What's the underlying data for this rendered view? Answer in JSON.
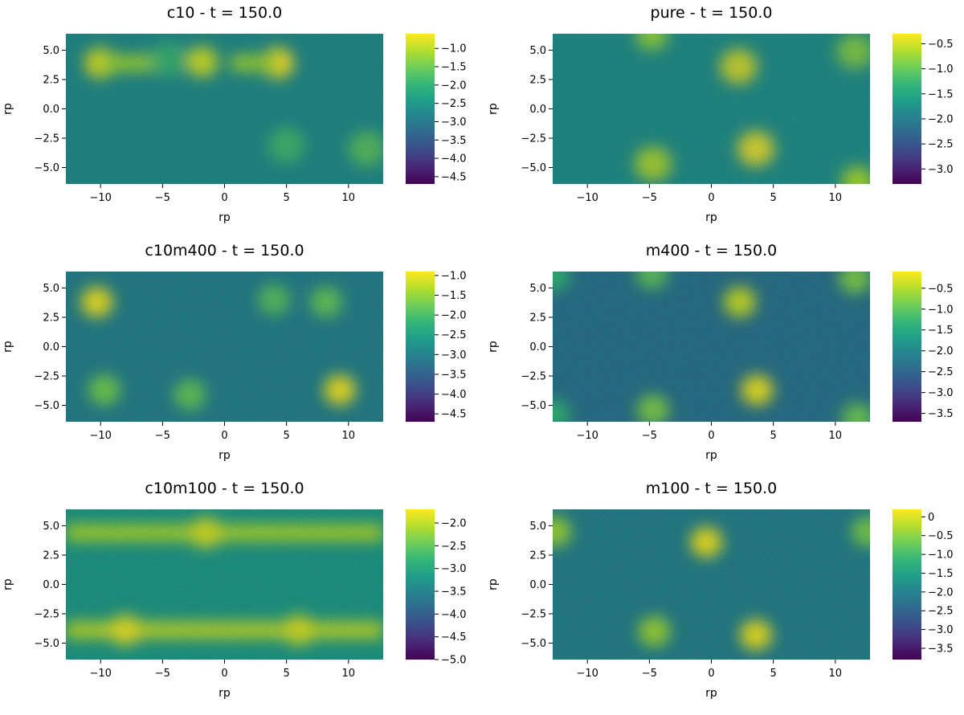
{
  "chart_data": [
    {
      "type": "heatmap",
      "title": "c10 - t = 150.0",
      "xlabel": "rp",
      "ylabel": "rp",
      "xlim": [
        -12.8,
        12.8
      ],
      "ylim": [
        -6.4,
        6.4
      ],
      "xticks": [
        -10,
        -5,
        0,
        5,
        10
      ],
      "xticklabels": [
        "−10",
        "−5",
        "0",
        "5",
        "10"
      ],
      "yticks": [
        5.0,
        2.5,
        0.0,
        -2.5,
        -5.0
      ],
      "yticklabels": [
        "5.0",
        "2.5",
        "0.0",
        "−2.5",
        "−5.0"
      ],
      "colorbar": {
        "min": -4.7,
        "max": -0.6,
        "ticks": [
          -1.0,
          -1.5,
          -2.0,
          -2.5,
          -3.0,
          -3.5,
          -4.0,
          -4.5
        ],
        "ticklabels": [
          "−1.0",
          "−1.5",
          "−2.0",
          "−2.5",
          "−3.0",
          "−3.5",
          "−4.0",
          "−4.5"
        ]
      },
      "colormap": "viridis",
      "background_value": -2.7,
      "features": [
        {
          "kind": "spot",
          "x": 4.3,
          "y": 3.9,
          "value": -0.6
        },
        {
          "kind": "spot",
          "x": -10.0,
          "y": 3.9,
          "value": -0.8
        },
        {
          "kind": "spot",
          "x": -1.8,
          "y": 4.0,
          "value": -0.9
        },
        {
          "kind": "ridge",
          "x1": -10.0,
          "x2": -5.0,
          "y": 3.9,
          "value": -1.2
        },
        {
          "kind": "ridge",
          "x1": 0.5,
          "x2": 4.3,
          "y": 3.9,
          "value": -1.2
        },
        {
          "kind": "ring",
          "x": -4.5,
          "y": 4.2,
          "value": -1.9
        },
        {
          "kind": "ring",
          "x": 5.0,
          "y": -3.1,
          "value": -1.8
        },
        {
          "kind": "ring",
          "x": 11.5,
          "y": -3.4,
          "value": -1.6
        }
      ]
    },
    {
      "type": "heatmap",
      "title": "pure - t = 150.0",
      "xlabel": "rp",
      "ylabel": "rp",
      "xlim": [
        -12.8,
        12.8
      ],
      "ylim": [
        -6.4,
        6.4
      ],
      "xticks": [
        -10,
        -5,
        0,
        5,
        10
      ],
      "xticklabels": [
        "−10",
        "−5",
        "0",
        "5",
        "10"
      ],
      "yticks": [
        5.0,
        2.5,
        0.0,
        -2.5,
        -5.0
      ],
      "yticklabels": [
        "5.0",
        "2.5",
        "0.0",
        "−2.5",
        "−5.0"
      ],
      "colorbar": {
        "min": -3.3,
        "max": -0.3,
        "ticks": [
          -0.5,
          -1.0,
          -1.5,
          -2.0,
          -2.5,
          -3.0
        ],
        "ticklabels": [
          "−0.5",
          "−1.0",
          "−1.5",
          "−2.0",
          "−2.5",
          "−3.0"
        ]
      },
      "colormap": "viridis",
      "background_value": -1.8,
      "features": [
        {
          "kind": "ring",
          "x": 2.2,
          "y": 3.6,
          "value": -0.4
        },
        {
          "kind": "ring",
          "x": 3.6,
          "y": -3.4,
          "value": -0.3
        },
        {
          "kind": "ring",
          "x": -4.7,
          "y": -4.7,
          "value": -0.6
        },
        {
          "kind": "ring",
          "x": 11.6,
          "y": 4.9,
          "value": -0.8
        },
        {
          "kind": "spot",
          "x": -4.8,
          "y": 6.3,
          "value": -0.8
        },
        {
          "kind": "spot",
          "x": 11.8,
          "y": -6.2,
          "value": -0.7
        }
      ]
    },
    {
      "type": "heatmap",
      "title": "c10m400 - t = 150.0",
      "xlabel": "rp",
      "ylabel": "rp",
      "xlim": [
        -12.8,
        12.8
      ],
      "ylim": [
        -6.4,
        6.4
      ],
      "xticks": [
        -10,
        -5,
        0,
        5,
        10
      ],
      "xticklabels": [
        "−10",
        "−5",
        "0",
        "5",
        "10"
      ],
      "yticks": [
        5.0,
        2.5,
        0.0,
        -2.5,
        -5.0
      ],
      "yticklabels": [
        "5.0",
        "2.5",
        "0.0",
        "−2.5",
        "−5.0"
      ],
      "colorbar": {
        "min": -4.7,
        "max": -0.9,
        "ticks": [
          -1.0,
          -1.5,
          -2.0,
          -2.5,
          -3.0,
          -3.5,
          -4.0,
          -4.5
        ],
        "ticklabels": [
          "−1.0",
          "−1.5",
          "−2.0",
          "−2.5",
          "−3.0",
          "−3.5",
          "−4.0",
          "−4.5"
        ]
      },
      "colormap": "viridis",
      "background_value": -3.0,
      "features": [
        {
          "kind": "spot",
          "x": -10.3,
          "y": 3.8,
          "value": -1.0
        },
        {
          "kind": "spot",
          "x": 4.0,
          "y": 4.0,
          "value": -1.9
        },
        {
          "kind": "spot",
          "x": 8.2,
          "y": 3.8,
          "value": -1.8
        },
        {
          "kind": "spot",
          "x": -9.7,
          "y": -3.7,
          "value": -1.7
        },
        {
          "kind": "spot",
          "x": -2.8,
          "y": -4.1,
          "value": -1.8
        },
        {
          "kind": "spot",
          "x": 9.3,
          "y": -3.7,
          "value": -1.0
        }
      ]
    },
    {
      "type": "heatmap",
      "title": "m400 - t = 150.0",
      "xlabel": "rp",
      "ylabel": "rp",
      "xlim": [
        -12.8,
        12.8
      ],
      "ylim": [
        -6.4,
        6.4
      ],
      "xticks": [
        -10,
        -5,
        0,
        5,
        10
      ],
      "xticklabels": [
        "−10",
        "−5",
        "0",
        "5",
        "10"
      ],
      "yticks": [
        5.0,
        2.5,
        0.0,
        -2.5,
        -5.0
      ],
      "yticklabels": [
        "5.0",
        "2.5",
        "0.0",
        "−2.5",
        "−5.0"
      ],
      "colorbar": {
        "min": -3.7,
        "max": -0.1,
        "ticks": [
          -0.5,
          -1.0,
          -1.5,
          -2.0,
          -2.5,
          -3.0,
          -3.5
        ],
        "ticklabels": [
          "−0.5",
          "−1.0",
          "−1.5",
          "−2.0",
          "−2.5",
          "−3.0",
          "−3.5"
        ]
      },
      "colormap": "viridis",
      "background_value": -2.3,
      "features": [
        {
          "kind": "spot",
          "x": 2.3,
          "y": 3.8,
          "value": -0.4
        },
        {
          "kind": "spot",
          "x": 3.7,
          "y": -3.7,
          "value": -0.2
        },
        {
          "kind": "spot",
          "x": -4.7,
          "y": -5.4,
          "value": -0.8
        },
        {
          "kind": "spot",
          "x": -4.8,
          "y": 6.2,
          "value": -1.0
        },
        {
          "kind": "spot",
          "x": 11.6,
          "y": 5.8,
          "value": -0.8
        },
        {
          "kind": "spot",
          "x": 11.8,
          "y": -6.1,
          "value": -0.9
        },
        {
          "kind": "spot",
          "x": -12.7,
          "y": 6.0,
          "value": -1.3
        },
        {
          "kind": "spot",
          "x": -12.7,
          "y": -5.8,
          "value": -1.3
        }
      ]
    },
    {
      "type": "heatmap",
      "title": "c10m100 - t = 150.0",
      "xlabel": "rp",
      "ylabel": "rp",
      "xlim": [
        -12.8,
        12.8
      ],
      "ylim": [
        -6.4,
        6.4
      ],
      "xticks": [
        -10,
        -5,
        0,
        5,
        10
      ],
      "xticklabels": [
        "−10",
        "−5",
        "0",
        "5",
        "10"
      ],
      "yticks": [
        5.0,
        2.5,
        0.0,
        -2.5,
        -5.0
      ],
      "yticklabels": [
        "5.0",
        "2.5",
        "0.0",
        "−2.5",
        "−5.0"
      ],
      "colorbar": {
        "min": -5.0,
        "max": -1.7,
        "ticks": [
          -2.0,
          -2.5,
          -3.0,
          -3.5,
          -4.0,
          -4.5,
          -5.0
        ],
        "ticklabels": [
          "−2.0",
          "−2.5",
          "−3.0",
          "−3.5",
          "−4.0",
          "−4.5",
          "−5.0"
        ]
      },
      "colormap": "viridis",
      "background_value": -3.2,
      "features": [
        {
          "kind": "ridge",
          "x1": -12.8,
          "x2": 12.8,
          "y": 4.4,
          "value": -2.1
        },
        {
          "kind": "ridge",
          "x1": -12.8,
          "x2": 12.8,
          "y": -3.9,
          "value": -2.0
        },
        {
          "kind": "spot",
          "x": -8.0,
          "y": -3.9,
          "value": -1.8
        },
        {
          "kind": "spot",
          "x": 6.0,
          "y": -3.9,
          "value": -1.9
        },
        {
          "kind": "spot",
          "x": -1.5,
          "y": 4.4,
          "value": -1.9
        }
      ]
    },
    {
      "type": "heatmap",
      "title": "m100 - t = 150.0",
      "xlabel": "rp",
      "ylabel": "rp",
      "xlim": [
        -12.8,
        12.8
      ],
      "ylim": [
        -6.4,
        6.4
      ],
      "xticks": [
        -10,
        -5,
        0,
        5,
        10
      ],
      "xticklabels": [
        "−10",
        "−5",
        "0",
        "5",
        "10"
      ],
      "yticks": [
        5.0,
        2.5,
        0.0,
        -2.5,
        -5.0
      ],
      "yticklabels": [
        "5.0",
        "2.5",
        "0.0",
        "−2.5",
        "−5.0"
      ],
      "colorbar": {
        "min": -3.8,
        "max": 0.2,
        "ticks": [
          0,
          -0.5,
          -1.0,
          -1.5,
          -2.0,
          -2.5,
          -3.0,
          -3.5
        ],
        "ticklabels": [
          "0",
          "−0.5",
          "−1.0",
          "−1.5",
          "−2.0",
          "−2.5",
          "−3.0",
          "−3.5"
        ]
      },
      "colormap": "viridis",
      "background_value": -2.0,
      "features": [
        {
          "kind": "spot",
          "x": -0.4,
          "y": 3.6,
          "value": 0.1
        },
        {
          "kind": "spot",
          "x": 3.6,
          "y": -4.3,
          "value": 0.1
        },
        {
          "kind": "spot",
          "x": -4.6,
          "y": -4.0,
          "value": -0.4
        },
        {
          "kind": "spot",
          "x": -12.6,
          "y": 4.5,
          "value": -0.4
        },
        {
          "kind": "spot",
          "x": 12.6,
          "y": 4.5,
          "value": -0.6
        }
      ]
    }
  ]
}
